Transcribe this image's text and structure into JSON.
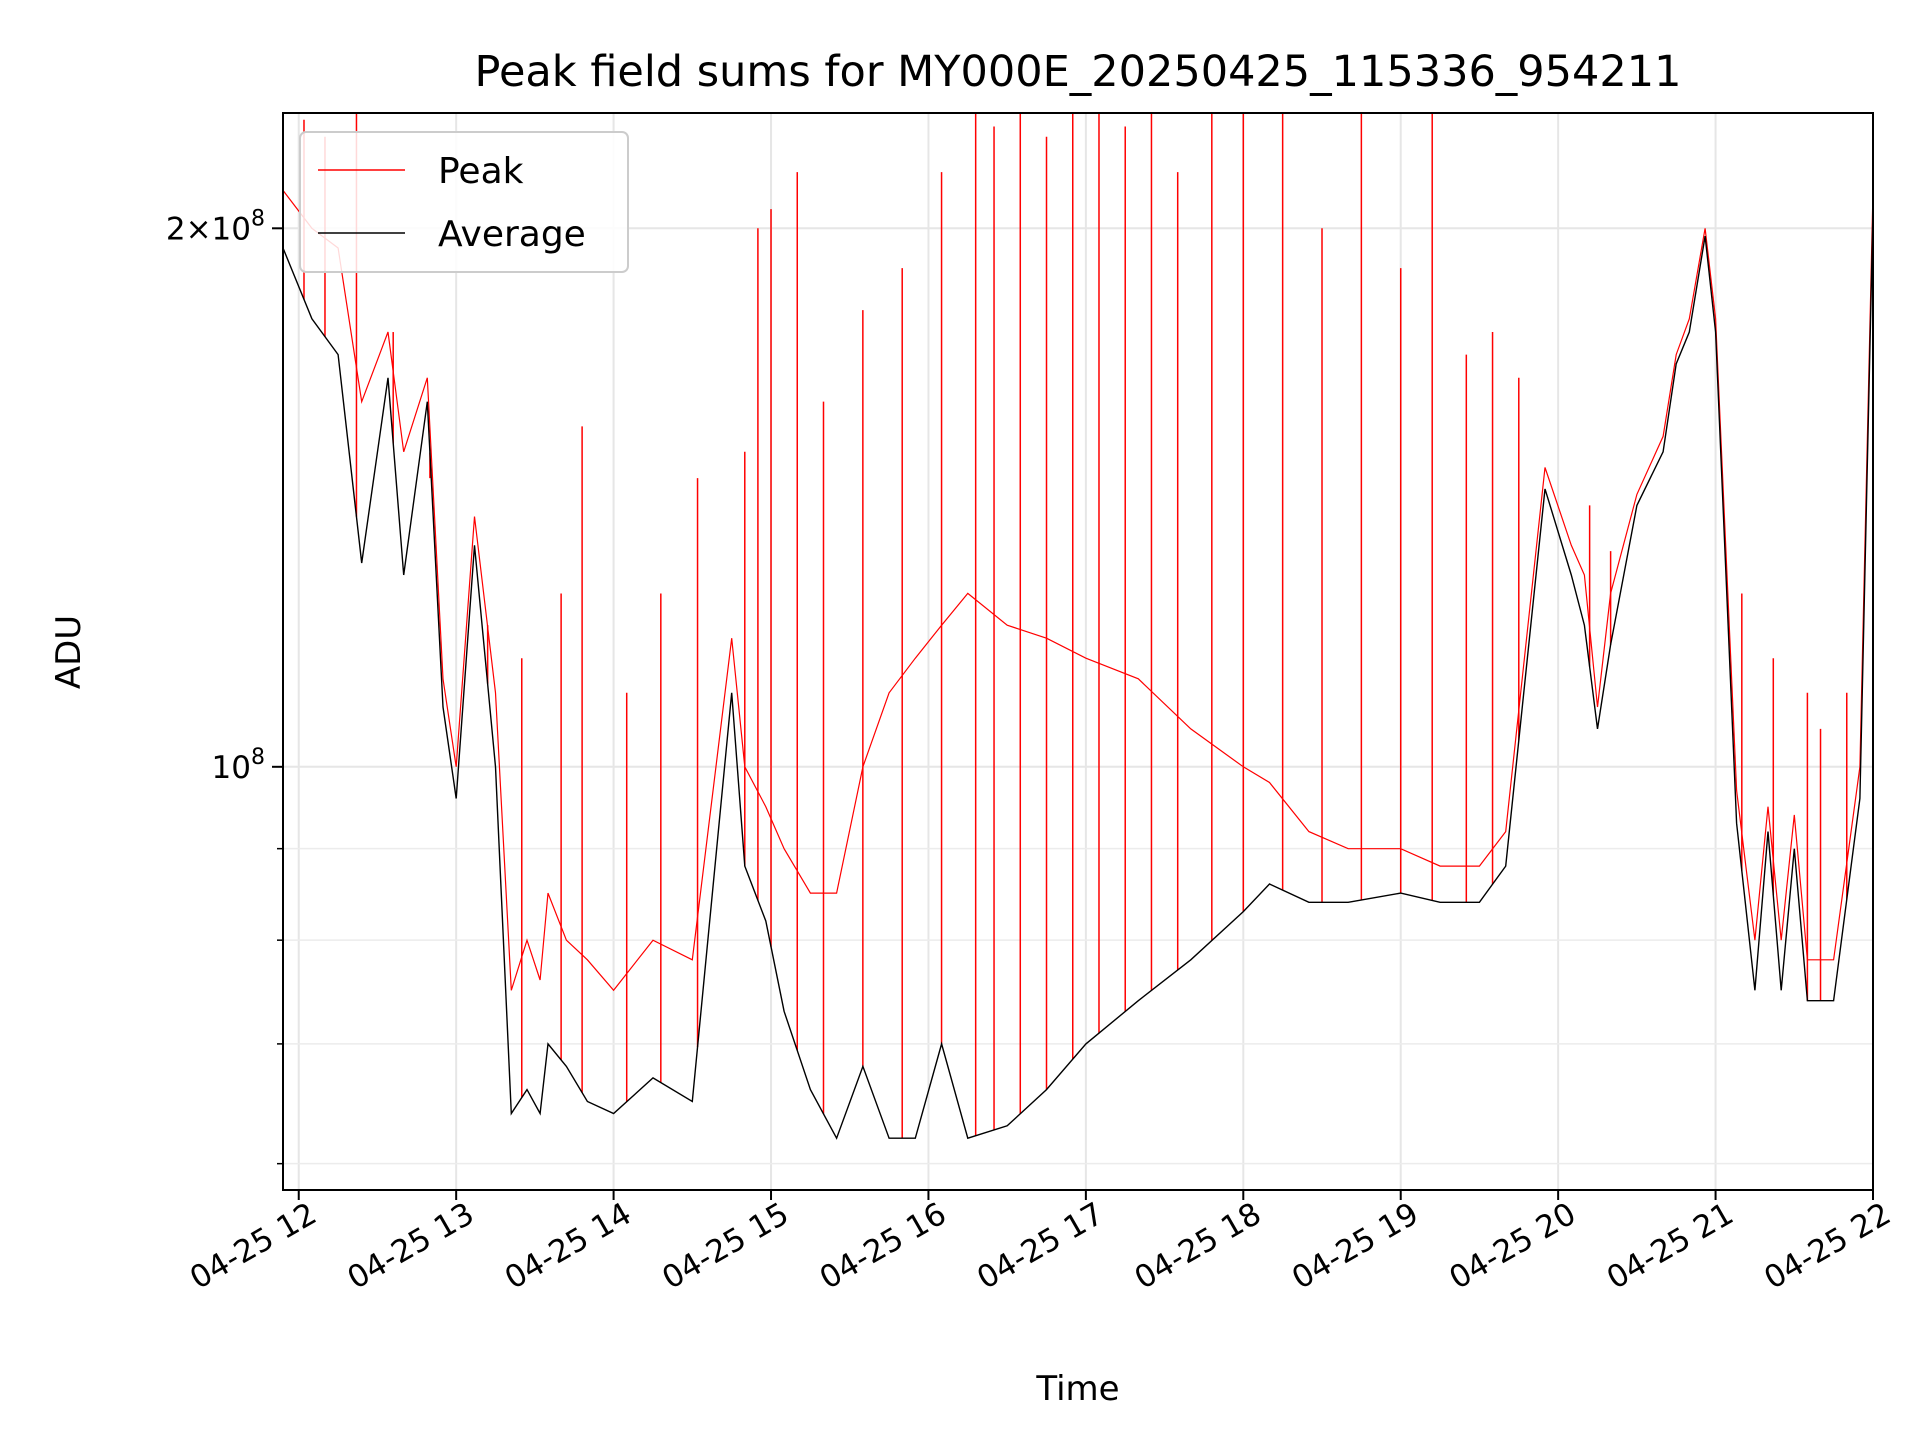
{
  "chart_data": {
    "type": "line",
    "title": "Peak field sums for MY000E_20250425_115336_954211",
    "xlabel": "Time",
    "ylabel": "ADU",
    "yscale": "log",
    "grid": true,
    "legend_position": "top-left",
    "xlim": [
      "04-25 11:54",
      "04-25 22:00"
    ],
    "ylim": [
      58000000,
      232000000
    ],
    "x_ticks": [
      "04-25 12",
      "04-25 13",
      "04-25 14",
      "04-25 15",
      "04-25 16",
      "04-25 17",
      "04-25 18",
      "04-25 19",
      "04-25 20",
      "04-25 21",
      "04-25 22"
    ],
    "y_tick_labels": [
      {
        "value": 200000000,
        "mantissa": "2",
        "exponent": "8",
        "base": "10"
      },
      {
        "value": 100000000,
        "mantissa": "",
        "exponent": "8",
        "base": "10"
      }
    ],
    "y_minor_ticks": [
      60000000,
      70000000,
      80000000,
      90000000
    ],
    "series": [
      {
        "name": "Average",
        "color": "#000000",
        "x": [
          "04-25 11:54",
          "04-25 12:05",
          "04-25 12:15",
          "04-25 12:24",
          "04-25 12:34",
          "04-25 12:40",
          "04-25 12:49",
          "04-25 12:55",
          "04-25 13:00",
          "04-25 13:07",
          "04-25 13:15",
          "04-25 13:21",
          "04-25 13:27",
          "04-25 13:32",
          "04-25 13:35",
          "04-25 13:42",
          "04-25 13:50",
          "04-25 14:00",
          "04-25 14:15",
          "04-25 14:30",
          "04-25 14:45",
          "04-25 14:50",
          "04-25 14:58",
          "04-25 15:05",
          "04-25 15:15",
          "04-25 15:25",
          "04-25 15:35",
          "04-25 15:45",
          "04-25 15:55",
          "04-25 16:05",
          "04-25 16:15",
          "04-25 16:30",
          "04-25 16:45",
          "04-25 17:00",
          "04-25 17:20",
          "04-25 17:40",
          "04-25 18:00",
          "04-25 18:10",
          "04-25 18:25",
          "04-25 18:40",
          "04-25 19:00",
          "04-25 19:15",
          "04-25 19:30",
          "04-25 19:40",
          "04-25 19:55",
          "04-25 20:05",
          "04-25 20:10",
          "04-25 20:15",
          "04-25 20:20",
          "04-25 20:30",
          "04-25 20:40",
          "04-25 20:45",
          "04-25 20:50",
          "04-25 20:56",
          "04-25 21:00",
          "04-25 21:08",
          "04-25 21:15",
          "04-25 21:20",
          "04-25 21:25",
          "04-25 21:30",
          "04-25 21:35",
          "04-25 21:45",
          "04-25 21:55",
          "04-25 22:00"
        ],
        "values": [
          195000000,
          178000000,
          170000000,
          130000000,
          165000000,
          128000000,
          160000000,
          108000000,
          96000000,
          133000000,
          100000000,
          64000000,
          66000000,
          64000000,
          70000000,
          68000000,
          65000000,
          64000000,
          67000000,
          65000000,
          110000000,
          88000000,
          82000000,
          73000000,
          66000000,
          62000000,
          68000000,
          62000000,
          62000000,
          70000000,
          62000000,
          63000000,
          66000000,
          70000000,
          74000000,
          78000000,
          83000000,
          86000000,
          84000000,
          84000000,
          85000000,
          84000000,
          84000000,
          88000000,
          143000000,
          128000000,
          120000000,
          105000000,
          117000000,
          140000000,
          150000000,
          168000000,
          175000000,
          198000000,
          175000000,
          93000000,
          75000000,
          92000000,
          75000000,
          90000000,
          74000000,
          74000000,
          96000000,
          205000000
        ]
      },
      {
        "name": "Peak",
        "color": "#ff0000",
        "x": [
          "04-25 11:54",
          "04-25 12:05",
          "04-25 12:15",
          "04-25 12:24",
          "04-25 12:34",
          "04-25 12:40",
          "04-25 12:49",
          "04-25 12:55",
          "04-25 13:00",
          "04-25 13:07",
          "04-25 13:15",
          "04-25 13:21",
          "04-25 13:27",
          "04-25 13:32",
          "04-25 13:35",
          "04-25 13:42",
          "04-25 13:50",
          "04-25 14:00",
          "04-25 14:15",
          "04-25 14:30",
          "04-25 14:45",
          "04-25 14:50",
          "04-25 14:58",
          "04-25 15:05",
          "04-25 15:15",
          "04-25 15:25",
          "04-25 15:35",
          "04-25 15:45",
          "04-25 15:55",
          "04-25 16:05",
          "04-25 16:15",
          "04-25 16:30",
          "04-25 16:45",
          "04-25 17:00",
          "04-25 17:20",
          "04-25 17:40",
          "04-25 18:00",
          "04-25 18:10",
          "04-25 18:25",
          "04-25 18:40",
          "04-25 19:00",
          "04-25 19:15",
          "04-25 19:30",
          "04-25 19:40",
          "04-25 19:55",
          "04-25 20:05",
          "04-25 20:10",
          "04-25 20:15",
          "04-25 20:20",
          "04-25 20:30",
          "04-25 20:40",
          "04-25 20:45",
          "04-25 20:50",
          "04-25 20:56",
          "04-25 21:00",
          "04-25 21:08",
          "04-25 21:15",
          "04-25 21:20",
          "04-25 21:25",
          "04-25 21:30",
          "04-25 21:35",
          "04-25 21:45",
          "04-25 21:55",
          "04-25 22:00"
        ],
        "values": [
          210000000,
          200000000,
          195000000,
          160000000,
          175000000,
          150000000,
          165000000,
          112000000,
          100000000,
          138000000,
          110000000,
          75000000,
          80000000,
          76000000,
          85000000,
          80000000,
          78000000,
          75000000,
          80000000,
          78000000,
          118000000,
          100000000,
          95000000,
          90000000,
          85000000,
          85000000,
          100000000,
          110000000,
          115000000,
          120000000,
          125000000,
          120000000,
          118000000,
          115000000,
          112000000,
          105000000,
          100000000,
          98000000,
          92000000,
          90000000,
          90000000,
          88000000,
          88000000,
          92000000,
          147000000,
          133000000,
          128000000,
          108000000,
          125000000,
          142000000,
          153000000,
          170000000,
          178000000,
          200000000,
          178000000,
          97000000,
          80000000,
          95000000,
          80000000,
          94000000,
          78000000,
          78000000,
          100000000,
          210000000
        ],
        "spikes": [
          [
            "04-25 12:02",
            230000000
          ],
          [
            "04-25 12:10",
            225000000
          ],
          [
            "04-25 12:22",
            232000000
          ],
          [
            "04-25 12:36",
            175000000
          ],
          [
            "04-25 12:50",
            145000000
          ],
          [
            "04-25 13:12",
            120000000
          ],
          [
            "04-25 13:25",
            115000000
          ],
          [
            "04-25 13:40",
            125000000
          ],
          [
            "04-25 13:48",
            155000000
          ],
          [
            "04-25 14:05",
            110000000
          ],
          [
            "04-25 14:18",
            125000000
          ],
          [
            "04-25 14:32",
            145000000
          ],
          [
            "04-25 14:50",
            150000000
          ],
          [
            "04-25 14:55",
            200000000
          ],
          [
            "04-25 15:00",
            205000000
          ],
          [
            "04-25 15:10",
            215000000
          ],
          [
            "04-25 15:20",
            160000000
          ],
          [
            "04-25 15:35",
            180000000
          ],
          [
            "04-25 15:50",
            190000000
          ],
          [
            "04-25 16:05",
            215000000
          ],
          [
            "04-25 16:18",
            232000000
          ],
          [
            "04-25 16:25",
            228000000
          ],
          [
            "04-25 16:35",
            232000000
          ],
          [
            "04-25 16:45",
            225000000
          ],
          [
            "04-25 16:55",
            232000000
          ],
          [
            "04-25 17:05",
            232000000
          ],
          [
            "04-25 17:15",
            228000000
          ],
          [
            "04-25 17:25",
            232000000
          ],
          [
            "04-25 17:35",
            215000000
          ],
          [
            "04-25 17:48",
            232000000
          ],
          [
            "04-25 18:00",
            232000000
          ],
          [
            "04-25 18:15",
            232000000
          ],
          [
            "04-25 18:30",
            200000000
          ],
          [
            "04-25 18:45",
            232000000
          ],
          [
            "04-25 19:00",
            190000000
          ],
          [
            "04-25 19:12",
            232000000
          ],
          [
            "04-25 19:25",
            170000000
          ],
          [
            "04-25 19:35",
            175000000
          ],
          [
            "04-25 19:45",
            165000000
          ],
          [
            "04-25 20:12",
            140000000
          ],
          [
            "04-25 20:20",
            132000000
          ],
          [
            "04-25 20:40",
            150000000
          ],
          [
            "04-25 21:10",
            125000000
          ],
          [
            "04-25 21:22",
            115000000
          ],
          [
            "04-25 21:35",
            110000000
          ],
          [
            "04-25 21:40",
            105000000
          ],
          [
            "04-25 21:50",
            110000000
          ]
        ]
      }
    ]
  }
}
